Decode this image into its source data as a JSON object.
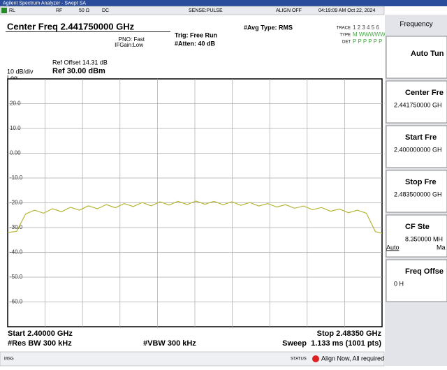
{
  "title_bar": "Agilent Spectrum Analyzer - Swept SA",
  "status_row": {
    "rl": "RL",
    "rf": "RF",
    "impedance": "50 Ω",
    "coupling": "DC",
    "sense": "SENSE:PULSE",
    "align": "ALIGN OFF",
    "datetime": "04:19:09 AM Oct 22, 2024"
  },
  "header": {
    "center_freq": "Center Freq 2.441750000 GHz",
    "pno": "PNO: Fast",
    "ifgain": "IFGain:Low",
    "trig": "Trig: Free Run",
    "atten": "#Atten: 40 dB",
    "avg_type": "#Avg Type: RMS",
    "trace_label": "TRACE",
    "trace_nums": "1 2 3 4 5 6",
    "type_label": "TYPE",
    "type_val": "M WWWWW",
    "det_label": "DET",
    "det_val": "P P P P P P"
  },
  "ref": {
    "offset": "Ref Offset 14.31 dB",
    "scale": "10 dB/div",
    "log": "Log",
    "level": "Ref 30.00 dBm"
  },
  "chart_data": {
    "type": "line",
    "color": "#b5b536",
    "x": [
      2.4,
      2.402,
      2.404,
      2.406,
      2.408,
      2.41,
      2.412,
      2.414,
      2.416,
      2.418,
      2.42,
      2.422,
      2.424,
      2.426,
      2.428,
      2.43,
      2.432,
      2.434,
      2.436,
      2.438,
      2.44,
      2.442,
      2.444,
      2.446,
      2.448,
      2.45,
      2.452,
      2.454,
      2.456,
      2.458,
      2.46,
      2.462,
      2.464,
      2.466,
      2.468,
      2.47,
      2.472,
      2.474,
      2.476,
      2.478,
      2.48,
      2.482,
      2.4835
    ],
    "values": [
      -32,
      -31.5,
      -24.5,
      -23.0,
      -24.2,
      -22.4,
      -23.6,
      -21.8,
      -23.0,
      -21.2,
      -22.4,
      -20.7,
      -22.0,
      -20.3,
      -21.5,
      -19.9,
      -21.2,
      -19.6,
      -20.9,
      -19.4,
      -20.7,
      -19.3,
      -20.6,
      -19.4,
      -20.8,
      -19.6,
      -21.0,
      -19.9,
      -21.3,
      -20.3,
      -21.7,
      -20.8,
      -22.2,
      -21.3,
      -22.8,
      -21.9,
      -23.4,
      -22.5,
      -24.0,
      -23.0,
      -24.2,
      -31.6,
      -32.3
    ],
    "xlim": [
      2.4,
      2.4835
    ],
    "ylim": [
      -70,
      30
    ],
    "yticks": [
      {
        "value": 20,
        "label": "20.0"
      },
      {
        "value": 10,
        "label": "10.0"
      },
      {
        "value": 0,
        "label": "0.00"
      },
      {
        "value": -10,
        "label": "-10.0"
      },
      {
        "value": -20,
        "label": "-20.0"
      },
      {
        "value": -30,
        "label": "-30.0"
      },
      {
        "value": -40,
        "label": "-40.0"
      },
      {
        "value": -50,
        "label": "-50.0"
      },
      {
        "value": -60,
        "label": "-60.0"
      }
    ],
    "grid": true
  },
  "footer": {
    "start": "Start 2.40000 GHz",
    "stop": "Stop 2.48350 GHz",
    "rbw": "#Res BW 300 kHz",
    "vbw": "#VBW 300 kHz",
    "sweep": "Sweep  1.133 ms (1001 pts)"
  },
  "status_bar": {
    "msg": "MSG",
    "status": "STATUS",
    "message": "Align Now, All required"
  },
  "menu": {
    "title": "Frequency",
    "items": [
      {
        "label": "Auto Tun"
      },
      {
        "label": "Center Fre",
        "value": "2.441750000 GH"
      },
      {
        "label": "Start Fre",
        "value": "2.400000000 GH"
      },
      {
        "label": "Stop Fre",
        "value": "2.483500000 GH"
      },
      {
        "label": "CF Ste",
        "value": "8.350000 MH",
        "mode": "Auto",
        "mode2": "Ma"
      },
      {
        "label": "Freq Offse",
        "value": "0 H"
      }
    ]
  }
}
